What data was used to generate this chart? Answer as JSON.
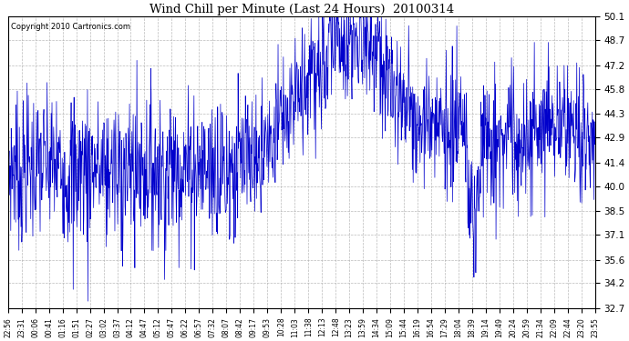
{
  "title": "Wind Chill per Minute (Last 24 Hours)  20100314",
  "copyright": "Copyright 2010 Cartronics.com",
  "line_color": "#0000CC",
  "bg_color": "#ffffff",
  "plot_bg_color": "#ffffff",
  "grid_color": "#aaaaaa",
  "yticks": [
    32.7,
    34.2,
    35.6,
    37.1,
    38.5,
    40.0,
    41.4,
    42.9,
    44.3,
    45.8,
    47.2,
    48.7,
    50.1
  ],
  "ymin": 32.7,
  "ymax": 50.1,
  "xtick_labels": [
    "22:56",
    "23:31",
    "00:06",
    "00:41",
    "01:16",
    "01:51",
    "02:27",
    "03:02",
    "03:37",
    "04:12",
    "04:47",
    "05:12",
    "05:47",
    "06:22",
    "06:57",
    "07:32",
    "08:07",
    "08:42",
    "09:17",
    "09:53",
    "10:28",
    "11:03",
    "11:38",
    "12:13",
    "12:48",
    "13:23",
    "13:59",
    "14:34",
    "15:09",
    "15:44",
    "16:19",
    "16:54",
    "17:29",
    "18:04",
    "18:39",
    "19:14",
    "19:49",
    "20:24",
    "20:59",
    "21:34",
    "22:09",
    "22:44",
    "23:20",
    "23:55"
  ],
  "num_points": 1440,
  "seed": 7
}
